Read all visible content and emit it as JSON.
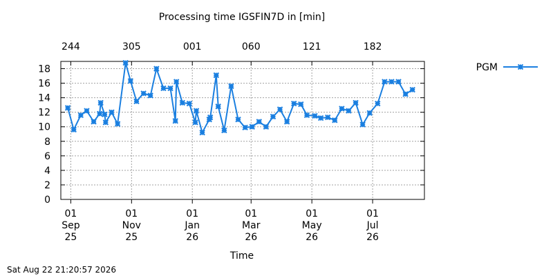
{
  "chart_data": {
    "type": "line",
    "title": "Processing time IGSFIN7D in [min]",
    "xlabel": "Time",
    "ylabel": "",
    "ylim": [
      0,
      19
    ],
    "yticks": [
      0,
      2,
      4,
      6,
      8,
      10,
      12,
      14,
      16,
      18
    ],
    "xlim": [
      "2025-08-22",
      "2026-08-22"
    ],
    "grid": true,
    "legend_position": "top-right",
    "timestamp": "Sat Aug 22 21:20:57 2026",
    "bottom_ticks": [
      {
        "date": "2025-09-01",
        "day": "01",
        "month": "Sep",
        "year": "25"
      },
      {
        "date": "2025-11-01",
        "day": "01",
        "month": "Nov",
        "year": "25"
      },
      {
        "date": "2026-01-01",
        "day": "01",
        "month": "Jan",
        "year": "26"
      },
      {
        "date": "2026-03-01",
        "day": "01",
        "month": "Mar",
        "year": "26"
      },
      {
        "date": "2026-05-01",
        "day": "01",
        "month": "May",
        "year": "26"
      },
      {
        "date": "2026-07-01",
        "day": "01",
        "month": "Jul",
        "year": "26"
      }
    ],
    "top_ticks": [
      {
        "date": "2025-09-01",
        "label": "244"
      },
      {
        "date": "2025-11-01",
        "label": "305"
      },
      {
        "date": "2026-01-01",
        "label": "001"
      },
      {
        "date": "2026-03-01",
        "label": "060"
      },
      {
        "date": "2026-05-01",
        "label": "121"
      },
      {
        "date": "2026-07-01",
        "label": "182"
      }
    ],
    "series": [
      {
        "name": "PGM",
        "color": "#1a7fe0",
        "marker": "x-star",
        "points": [
          [
            "2025-08-29",
            12.6
          ],
          [
            "2025-09-04",
            9.6
          ],
          [
            "2025-09-11",
            11.6
          ],
          [
            "2025-09-17",
            12.2
          ],
          [
            "2025-09-24",
            10.7
          ],
          [
            "2025-09-30",
            11.8
          ],
          [
            "2025-10-01",
            13.3
          ],
          [
            "2025-10-05",
            11.7
          ],
          [
            "2025-10-06",
            10.6
          ],
          [
            "2025-10-12",
            12.0
          ],
          [
            "2025-10-18",
            10.4
          ],
          [
            "2025-10-26",
            18.8
          ],
          [
            "2025-10-31",
            16.3
          ],
          [
            "2025-11-06",
            13.5
          ],
          [
            "2025-11-13",
            14.6
          ],
          [
            "2025-11-20",
            14.3
          ],
          [
            "2025-11-26",
            18.0
          ],
          [
            "2025-12-03",
            15.3
          ],
          [
            "2025-12-10",
            15.3
          ],
          [
            "2025-12-15",
            10.8
          ],
          [
            "2025-12-16",
            16.2
          ],
          [
            "2025-12-22",
            13.3
          ],
          [
            "2025-12-29",
            13.2
          ],
          [
            "2026-01-04",
            10.6
          ],
          [
            "2026-01-05",
            12.2
          ],
          [
            "2026-01-11",
            9.2
          ],
          [
            "2026-01-18",
            11.0
          ],
          [
            "2026-01-19",
            11.3
          ],
          [
            "2026-01-25",
            17.1
          ],
          [
            "2026-01-27",
            12.8
          ],
          [
            "2026-02-02",
            9.5
          ],
          [
            "2026-02-09",
            15.6
          ],
          [
            "2026-02-16",
            11.0
          ],
          [
            "2026-02-23",
            9.9
          ],
          [
            "2026-03-02",
            10.0
          ],
          [
            "2026-03-09",
            10.7
          ],
          [
            "2026-03-16",
            10.0
          ],
          [
            "2026-03-23",
            11.4
          ],
          [
            "2026-03-30",
            12.4
          ],
          [
            "2026-04-06",
            10.7
          ],
          [
            "2026-04-13",
            13.2
          ],
          [
            "2026-04-20",
            13.1
          ],
          [
            "2026-04-26",
            11.6
          ],
          [
            "2026-05-04",
            11.5
          ],
          [
            "2026-05-10",
            11.2
          ],
          [
            "2026-05-17",
            11.3
          ],
          [
            "2026-05-24",
            10.9
          ],
          [
            "2026-05-31",
            12.5
          ],
          [
            "2026-06-07",
            12.2
          ],
          [
            "2026-06-14",
            13.3
          ],
          [
            "2026-06-21",
            10.3
          ],
          [
            "2026-06-28",
            11.9
          ],
          [
            "2026-07-06",
            13.2
          ],
          [
            "2026-07-13",
            16.2
          ],
          [
            "2026-07-20",
            16.2
          ],
          [
            "2026-07-27",
            16.2
          ],
          [
            "2026-08-03",
            14.5
          ],
          [
            "2026-08-10",
            15.1
          ]
        ]
      }
    ]
  }
}
